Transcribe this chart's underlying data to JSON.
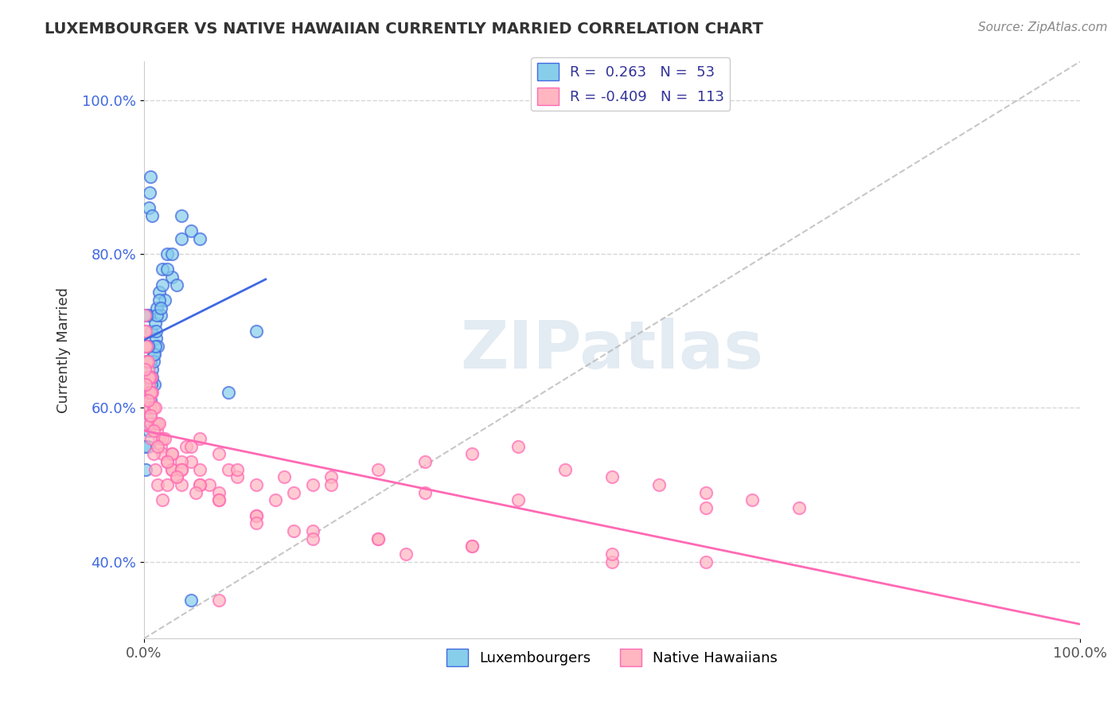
{
  "title": "LUXEMBOURGER VS NATIVE HAWAIIAN CURRENTLY MARRIED CORRELATION CHART",
  "source_text": "Source: ZipAtlas.com",
  "xlabel": "",
  "ylabel": "Currently Married",
  "legend_label1": "Luxembourgers",
  "legend_label2": "Native Hawaiians",
  "R1": 0.263,
  "N1": 53,
  "R2": -0.409,
  "N2": 113,
  "xlim": [
    0.0,
    1.0
  ],
  "ylim": [
    0.3,
    1.05
  ],
  "x_ticks": [
    0.0,
    1.0
  ],
  "x_tick_labels": [
    "0.0%",
    "100.0%"
  ],
  "y_ticks": [
    0.4,
    0.6,
    0.8,
    1.0
  ],
  "y_tick_labels": [
    "40.0%",
    "60.0%",
    "80.0%",
    "100.0%"
  ],
  "color_blue": "#87CEEB",
  "color_blue_line": "#4169E1",
  "color_pink": "#FFB6C1",
  "color_pink_line": "#FF69B4",
  "color_diag_dash": "#B0B0B0",
  "watermark": "ZIPatlas",
  "watermark_color": "#C8D8E8",
  "blue_scatter_x": [
    0.002,
    0.004,
    0.005,
    0.006,
    0.007,
    0.008,
    0.009,
    0.01,
    0.011,
    0.012,
    0.013,
    0.014,
    0.015,
    0.016,
    0.018,
    0.02,
    0.022,
    0.025,
    0.03,
    0.035,
    0.04,
    0.05,
    0.06,
    0.09,
    0.12,
    0.002,
    0.003,
    0.004,
    0.005,
    0.006,
    0.007,
    0.008,
    0.009,
    0.01,
    0.011,
    0.012,
    0.013,
    0.014,
    0.016,
    0.018,
    0.02,
    0.025,
    0.03,
    0.04,
    0.05,
    0.001,
    0.002,
    0.003,
    0.004,
    0.005,
    0.006,
    0.007,
    0.009
  ],
  "blue_scatter_y": [
    0.62,
    0.64,
    0.72,
    0.68,
    0.66,
    0.7,
    0.65,
    0.67,
    0.63,
    0.71,
    0.69,
    0.73,
    0.68,
    0.75,
    0.72,
    0.78,
    0.74,
    0.8,
    0.77,
    0.76,
    0.85,
    0.83,
    0.82,
    0.62,
    0.7,
    0.58,
    0.6,
    0.55,
    0.57,
    0.59,
    0.61,
    0.63,
    0.64,
    0.66,
    0.67,
    0.68,
    0.7,
    0.72,
    0.74,
    0.73,
    0.76,
    0.78,
    0.8,
    0.82,
    0.35,
    0.55,
    0.52,
    0.72,
    0.68,
    0.86,
    0.88,
    0.9,
    0.85
  ],
  "pink_scatter_x": [
    0.001,
    0.002,
    0.003,
    0.004,
    0.005,
    0.006,
    0.007,
    0.008,
    0.009,
    0.01,
    0.012,
    0.014,
    0.016,
    0.018,
    0.02,
    0.025,
    0.03,
    0.035,
    0.04,
    0.045,
    0.05,
    0.06,
    0.07,
    0.08,
    0.09,
    0.1,
    0.12,
    0.14,
    0.16,
    0.18,
    0.2,
    0.25,
    0.3,
    0.35,
    0.4,
    0.45,
    0.5,
    0.55,
    0.6,
    0.65,
    0.7,
    0.002,
    0.003,
    0.004,
    0.005,
    0.006,
    0.007,
    0.008,
    0.01,
    0.012,
    0.015,
    0.02,
    0.025,
    0.03,
    0.04,
    0.05,
    0.06,
    0.08,
    0.1,
    0.15,
    0.2,
    0.3,
    0.4,
    0.6,
    0.001,
    0.002,
    0.003,
    0.005,
    0.007,
    0.01,
    0.015,
    0.02,
    0.03,
    0.04,
    0.06,
    0.08,
    0.12,
    0.18,
    0.25,
    0.35,
    0.5,
    0.001,
    0.002,
    0.003,
    0.004,
    0.006,
    0.008,
    0.012,
    0.016,
    0.022,
    0.03,
    0.04,
    0.06,
    0.08,
    0.12,
    0.16,
    0.25,
    0.35,
    0.5,
    0.6,
    0.001,
    0.002,
    0.004,
    0.007,
    0.01,
    0.015,
    0.025,
    0.035,
    0.055,
    0.08,
    0.12,
    0.18,
    0.28
  ],
  "pink_scatter_y": [
    0.62,
    0.58,
    0.6,
    0.65,
    0.63,
    0.61,
    0.59,
    0.64,
    0.62,
    0.6,
    0.58,
    0.57,
    0.56,
    0.55,
    0.54,
    0.53,
    0.52,
    0.51,
    0.5,
    0.55,
    0.53,
    0.52,
    0.5,
    0.49,
    0.52,
    0.51,
    0.5,
    0.48,
    0.49,
    0.5,
    0.51,
    0.52,
    0.53,
    0.54,
    0.55,
    0.52,
    0.51,
    0.5,
    0.49,
    0.48,
    0.47,
    0.68,
    0.66,
    0.64,
    0.62,
    0.6,
    0.58,
    0.56,
    0.54,
    0.52,
    0.5,
    0.48,
    0.5,
    0.52,
    0.53,
    0.55,
    0.56,
    0.54,
    0.52,
    0.51,
    0.5,
    0.49,
    0.48,
    0.47,
    0.7,
    0.68,
    0.66,
    0.64,
    0.62,
    0.6,
    0.58,
    0.56,
    0.54,
    0.52,
    0.5,
    0.48,
    0.46,
    0.44,
    0.43,
    0.42,
    0.4,
    0.72,
    0.7,
    0.68,
    0.66,
    0.64,
    0.62,
    0.6,
    0.58,
    0.56,
    0.54,
    0.52,
    0.5,
    0.48,
    0.46,
    0.44,
    0.43,
    0.42,
    0.41,
    0.4,
    0.65,
    0.63,
    0.61,
    0.59,
    0.57,
    0.55,
    0.53,
    0.51,
    0.49,
    0.35,
    0.45,
    0.43,
    0.41
  ]
}
